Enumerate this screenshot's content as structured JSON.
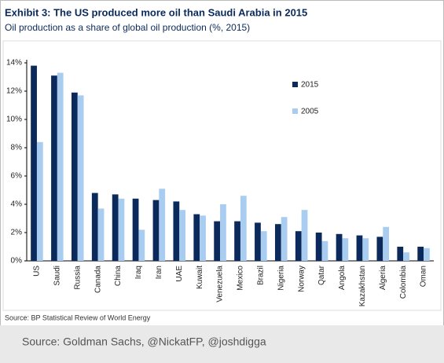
{
  "chart_data": {
    "type": "bar",
    "title": "Exhibit 3: The US produced more oil than Saudi Arabia in 2015",
    "subtitle": "Oil production as a share of global oil production (%, 2015)",
    "source": "Source: BP Statistical Review of World Energy",
    "footer": "Source: Goldman Sachs, @NickatFP, @joshdigga",
    "categories": [
      "US",
      "Saudi",
      "Russia",
      "Canada",
      "China",
      "Iraq",
      "Iran",
      "UAE",
      "Kuwait",
      "Venezuela",
      "Mexico",
      "Brazil",
      "Nigeria",
      "Norway",
      "Qatar",
      "Angola",
      "Kazakhstan",
      "Algeria",
      "Colombia",
      "Oman"
    ],
    "series": [
      {
        "name": "2015",
        "color": "#0b2a5b",
        "values": [
          13.8,
          13.1,
          11.9,
          4.8,
          4.7,
          4.4,
          4.3,
          4.2,
          3.3,
          2.8,
          2.8,
          2.7,
          2.6,
          2.1,
          2.0,
          1.9,
          1.8,
          1.7,
          1.0,
          1.0
        ]
      },
      {
        "name": "2005",
        "color": "#a9cdf0",
        "values": [
          8.4,
          13.3,
          11.7,
          3.7,
          4.4,
          2.2,
          5.1,
          3.6,
          3.2,
          4.0,
          4.6,
          2.1,
          3.1,
          3.6,
          1.4,
          1.6,
          1.6,
          2.4,
          0.6,
          0.9
        ]
      }
    ],
    "ylim": [
      0,
      14
    ],
    "yticks": [
      {
        "value": 0,
        "label": "0%"
      },
      {
        "value": 2,
        "label": "2%"
      },
      {
        "value": 4,
        "label": "4%"
      },
      {
        "value": 6,
        "label": "6%"
      },
      {
        "value": 8,
        "label": "8%"
      },
      {
        "value": 10,
        "label": "10%"
      },
      {
        "value": 12,
        "label": "12%"
      },
      {
        "value": 14,
        "label": "14%"
      }
    ]
  }
}
